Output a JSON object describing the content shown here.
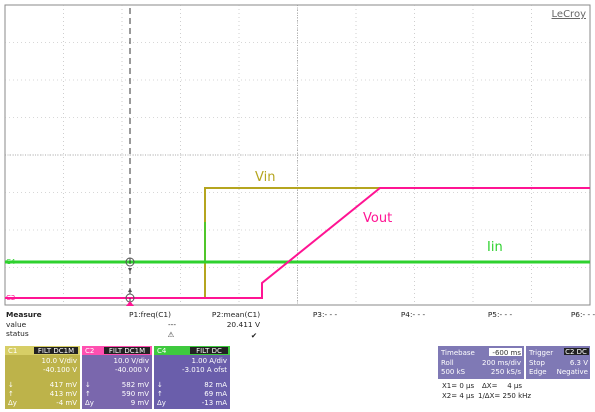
{
  "brand": "LeCroy",
  "colors": {
    "c1": "#b5a51f",
    "c2": "#ff1493",
    "c4": "#2ed12e",
    "grid": "#9a9a9a",
    "panel_c1": "#bdb34a",
    "panel_c2": "#7a67ad",
    "panel_c4": "#6a5eab",
    "panel_time": "#7f79b5"
  },
  "trace_labels": {
    "vin": "Vin",
    "vout": "Vout",
    "iin": "Iin"
  },
  "trace_markers": {
    "c4": "C4",
    "c2": "C2"
  },
  "measure": {
    "title": "Measure",
    "row_value": "value",
    "row_status": "status",
    "columns": [
      "P1:freq(C1)",
      "P2:mean(C1)",
      "P3:- - -",
      "P4:- - -",
      "P5:- - -",
      "P6:- - -"
    ],
    "p1_value": "---",
    "p2_value": "20.411 V",
    "p1_status": "⚠",
    "p2_status": "✔"
  },
  "channels": [
    {
      "name": "C1",
      "tag": "FILT DC1M",
      "scale": "10.0 V/div",
      "offset": "-40.100 V",
      "c1": "417 mV",
      "c2": "413 mV",
      "delta": "-4 mV"
    },
    {
      "name": "C2",
      "tag": "FILT DC1M",
      "scale": "10.0 V/div",
      "offset": "-40.000 V",
      "c1": "582 mV",
      "c2": "590 mV",
      "delta": "9 mV"
    },
    {
      "name": "C4",
      "tag": "FILT DC",
      "scale": "1.00 A/div",
      "offset": "-3.010 A ofst",
      "c1": "82 mA",
      "c2": "69 mA",
      "delta": "-13 mA"
    }
  ],
  "cursor_symbols": {
    "c1": "↓",
    "c2": "↑",
    "delta": "Δy"
  },
  "timebase": {
    "title": "Timebase",
    "offset": "-600 ms",
    "mode": "Roll",
    "per_div": "200 ms/div",
    "samples": "500 kS",
    "rate": "250 kS/s"
  },
  "trigger": {
    "title": "Trigger",
    "channel": "C2 DC",
    "mode": "Stop",
    "level": "6.3 V",
    "type": "Edge",
    "slope": "Negative"
  },
  "cursors": {
    "x1": "X1= 0 µs",
    "dx_label": "ΔX=",
    "dx": "4 µs",
    "x2": "X2= 4 µs",
    "inv_dx": "1/ΔX= 250 kHz"
  }
}
